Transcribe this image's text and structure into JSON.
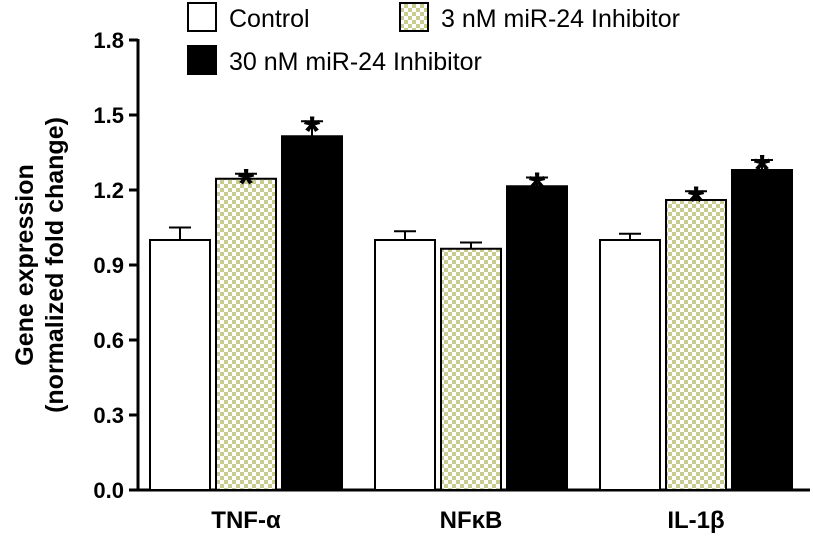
{
  "chart_data": {
    "type": "bar",
    "title": "",
    "ylabel_line1": "Gene expression",
    "ylabel_line2": "(normalized fold change)",
    "xlabel": "",
    "ylim": [
      0.0,
      1.8
    ],
    "yticks": [
      "0.0",
      "0.3",
      "0.6",
      "0.9",
      "1.2",
      "1.5",
      "1.8"
    ],
    "categories": [
      "TNF-α",
      "NFκB",
      "IL-1β"
    ],
    "legend_position": "top",
    "significance_marker": "*",
    "series": [
      {
        "name": "Control",
        "fill": "white",
        "values": [
          1.0,
          1.0,
          1.0
        ],
        "errors": [
          0.05,
          0.035,
          0.025
        ],
        "significant": [
          false,
          false,
          false
        ]
      },
      {
        "name": "3 nM miR-24 Inhibitor",
        "fill": "checker",
        "color": "#c8cc8e",
        "values": [
          1.245,
          0.965,
          1.16
        ],
        "errors": [
          0.02,
          0.025,
          0.035
        ],
        "significant": [
          true,
          false,
          true
        ]
      },
      {
        "name": "30 nM miR-24 Inhibitor",
        "fill": "black",
        "values": [
          1.415,
          1.215,
          1.28
        ],
        "errors": [
          0.06,
          0.035,
          0.04
        ],
        "significant": [
          true,
          true,
          true
        ]
      }
    ]
  }
}
